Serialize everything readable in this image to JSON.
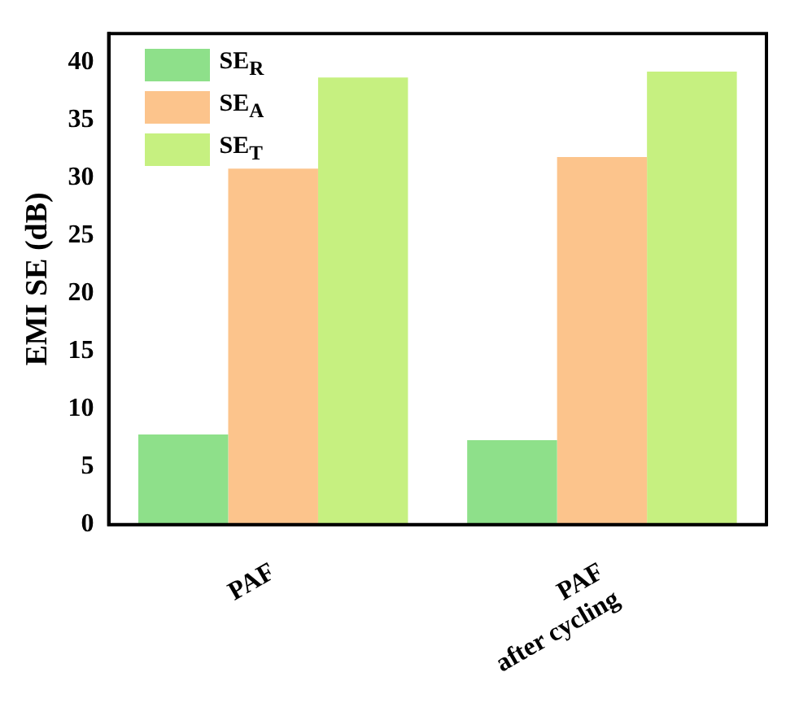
{
  "chart_data": {
    "type": "bar",
    "ylabel": "EMI SE (dB)",
    "categories": [
      "PAF",
      "PAF\nafter cycling"
    ],
    "series": [
      {
        "name": "SE$_{R}$",
        "color": "#8ee08a",
        "values": [
          7.8,
          7.3
        ]
      },
      {
        "name": "SE$_{A}$",
        "color": "#fcc48c",
        "values": [
          30.8,
          31.8
        ]
      },
      {
        "name": "SE$_{T}$",
        "color": "#c6f080",
        "values": [
          38.7,
          39.2
        ]
      }
    ],
    "ylim": [
      0,
      42.5
    ],
    "yticks": [
      0,
      5,
      10,
      15,
      20,
      25,
      30,
      35,
      40
    ],
    "grid": false,
    "legend": "top left"
  }
}
